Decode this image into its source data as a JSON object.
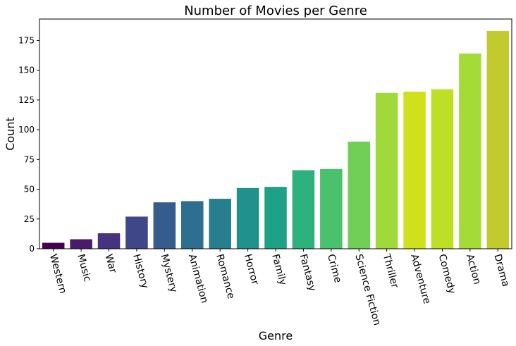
{
  "chart_data": {
    "type": "bar",
    "title": "Number of Movies per Genre",
    "xlabel": "Genre",
    "ylabel": "Count",
    "categories": [
      "Western",
      "Music",
      "War",
      "History",
      "Mystery",
      "Animation",
      "Romance",
      "Horror",
      "Family",
      "Fantasy",
      "Crime",
      "Science Fiction",
      "Thriller",
      "Adventure",
      "Comedy",
      "Action",
      "Drama"
    ],
    "values": [
      5,
      8,
      13,
      27,
      39,
      40,
      42,
      51,
      52,
      66,
      67,
      90,
      131,
      132,
      134,
      164,
      183
    ],
    "colors": [
      "#440154",
      "#481b6d",
      "#46327e",
      "#3f4788",
      "#365c8d",
      "#2e6e8e",
      "#277f8e",
      "#21918c",
      "#1fa187",
      "#2db27d",
      "#4ac16d",
      "#71cf57",
      "#9fda3a",
      "#cfe11c",
      "#bddf26",
      "#a5db36",
      "#c2ca2e"
    ],
    "ylim": [
      0,
      193
    ],
    "yticks": [
      0,
      25,
      50,
      75,
      100,
      125,
      150,
      175
    ],
    "grid": false,
    "legend": "none"
  }
}
